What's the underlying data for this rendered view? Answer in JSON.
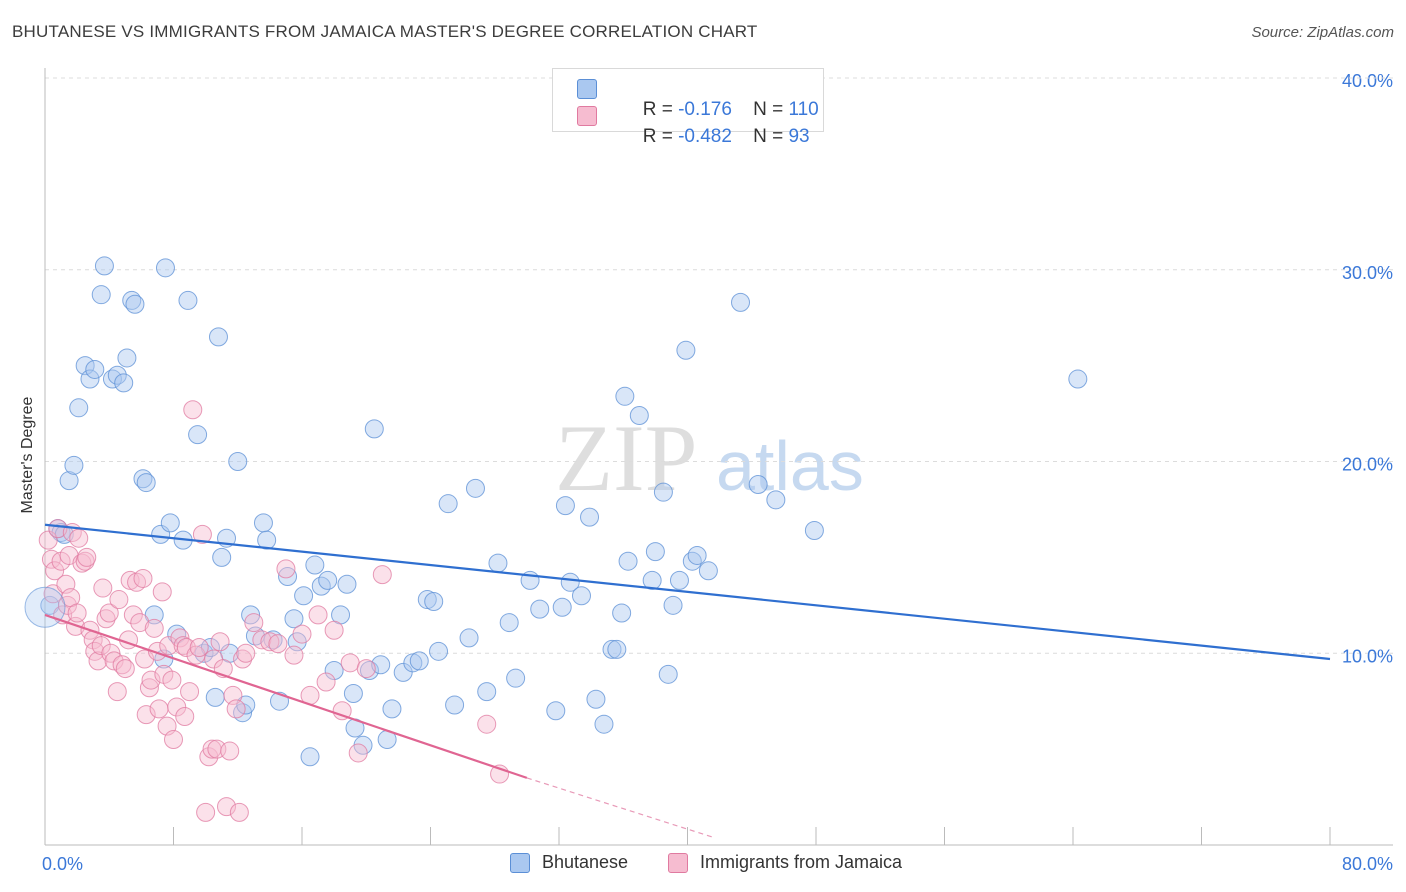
{
  "title": "BHUTANESE VS IMMIGRANTS FROM JAMAICA MASTER'S DEGREE CORRELATION CHART",
  "source": "Source: ZipAtlas.com",
  "watermark": {
    "zip": "ZIP",
    "atlas": "atlas"
  },
  "legend": {
    "rows": [
      {
        "r_label": "R = ",
        "r_value": "-0.176",
        "n_label": "N = ",
        "n_value": "110",
        "color": "#aac8f0",
        "stroke": "#5b8fd6"
      },
      {
        "r_label": "R = ",
        "r_value": "-0.482",
        "n_label": "N = ",
        "n_value": "93",
        "color": "#f6bcd0",
        "stroke": "#e07aa0"
      }
    ]
  },
  "bottom_legend": [
    {
      "label": "Bhutanese",
      "color": "#aac8f0",
      "stroke": "#5b8fd6"
    },
    {
      "label": "Immigrants from Jamaica",
      "color": "#f6bcd0",
      "stroke": "#e07aa0"
    }
  ],
  "chart_data": {
    "type": "scatter",
    "title": "BHUTANESE VS IMMIGRANTS FROM JAMAICA MASTER'S DEGREE CORRELATION CHART",
    "xlabel": "",
    "ylabel": "Master's Degree",
    "xlim": [
      0,
      80
    ],
    "ylim": [
      0,
      40
    ],
    "x_tick_labels": [
      "0.0%",
      "80.0%"
    ],
    "y_ticks": [
      10,
      20,
      30,
      40
    ],
    "y_tick_labels": [
      "10.0%",
      "20.0%",
      "30.0%",
      "40.0%"
    ],
    "grid": true,
    "series": [
      {
        "name": "Bhutanese",
        "color": "#5b8fd6",
        "fill": "#aac8f0",
        "trend": {
          "x0": 0,
          "y0": 16.7,
          "x1": 80,
          "y1": 9.7
        },
        "points": [
          [
            0.3,
            12.5
          ],
          [
            0.8,
            16.5
          ],
          [
            1.0,
            16.3
          ],
          [
            1.2,
            16.2
          ],
          [
            1.5,
            19.0
          ],
          [
            1.8,
            19.8
          ],
          [
            2.1,
            22.8
          ],
          [
            2.5,
            25.0
          ],
          [
            2.8,
            24.3
          ],
          [
            3.1,
            24.8
          ],
          [
            3.5,
            28.7
          ],
          [
            3.7,
            30.2
          ],
          [
            4.2,
            24.3
          ],
          [
            4.5,
            24.5
          ],
          [
            4.9,
            24.1
          ],
          [
            5.1,
            25.4
          ],
          [
            5.4,
            28.4
          ],
          [
            5.6,
            28.2
          ],
          [
            6.1,
            19.1
          ],
          [
            6.3,
            18.9
          ],
          [
            6.8,
            12.0
          ],
          [
            7.2,
            16.2
          ],
          [
            7.4,
            9.7
          ],
          [
            7.5,
            30.1
          ],
          [
            7.8,
            16.8
          ],
          [
            8.2,
            11.0
          ],
          [
            8.6,
            15.9
          ],
          [
            8.9,
            28.4
          ],
          [
            9.5,
            21.4
          ],
          [
            9.9,
            10.0
          ],
          [
            10.3,
            10.3
          ],
          [
            10.6,
            7.7
          ],
          [
            10.8,
            26.5
          ],
          [
            11.0,
            15.0
          ],
          [
            11.3,
            16.0
          ],
          [
            11.5,
            10.0
          ],
          [
            12.0,
            20.0
          ],
          [
            12.3,
            6.9
          ],
          [
            12.5,
            7.3
          ],
          [
            12.8,
            12.0
          ],
          [
            13.1,
            10.9
          ],
          [
            13.6,
            16.8
          ],
          [
            13.8,
            15.9
          ],
          [
            14.2,
            10.7
          ],
          [
            14.6,
            7.5
          ],
          [
            15.1,
            14.0
          ],
          [
            15.5,
            11.8
          ],
          [
            15.7,
            10.6
          ],
          [
            16.1,
            13.0
          ],
          [
            16.5,
            4.6
          ],
          [
            16.8,
            14.6
          ],
          [
            17.2,
            13.5
          ],
          [
            17.6,
            13.8
          ],
          [
            18.0,
            9.1
          ],
          [
            18.4,
            12.0
          ],
          [
            18.8,
            13.6
          ],
          [
            19.2,
            7.9
          ],
          [
            19.3,
            6.1
          ],
          [
            19.8,
            5.2
          ],
          [
            20.2,
            9.1
          ],
          [
            20.5,
            21.7
          ],
          [
            20.9,
            9.4
          ],
          [
            21.3,
            5.5
          ],
          [
            21.6,
            7.1
          ],
          [
            22.3,
            9.0
          ],
          [
            22.9,
            9.5
          ],
          [
            23.3,
            9.6
          ],
          [
            23.8,
            12.8
          ],
          [
            24.2,
            12.7
          ],
          [
            24.5,
            10.1
          ],
          [
            25.1,
            17.8
          ],
          [
            25.5,
            7.3
          ],
          [
            26.4,
            10.8
          ],
          [
            26.8,
            18.6
          ],
          [
            27.5,
            8.0
          ],
          [
            28.2,
            14.7
          ],
          [
            28.9,
            11.6
          ],
          [
            29.3,
            8.7
          ],
          [
            30.2,
            13.8
          ],
          [
            30.8,
            12.3
          ],
          [
            31.8,
            7.0
          ],
          [
            32.2,
            12.4
          ],
          [
            32.4,
            17.7
          ],
          [
            32.7,
            13.7
          ],
          [
            33.4,
            13.0
          ],
          [
            33.9,
            17.1
          ],
          [
            34.3,
            7.6
          ],
          [
            34.8,
            6.3
          ],
          [
            35.3,
            10.2
          ],
          [
            35.6,
            10.2
          ],
          [
            35.9,
            12.1
          ],
          [
            36.1,
            23.4
          ],
          [
            36.3,
            14.8
          ],
          [
            37.0,
            22.4
          ],
          [
            37.8,
            13.8
          ],
          [
            38.0,
            15.3
          ],
          [
            38.5,
            18.4
          ],
          [
            38.8,
            8.9
          ],
          [
            39.1,
            12.5
          ],
          [
            39.5,
            13.8
          ],
          [
            39.9,
            25.8
          ],
          [
            40.3,
            14.8
          ],
          [
            40.6,
            15.1
          ],
          [
            41.3,
            14.3
          ],
          [
            43.3,
            28.3
          ],
          [
            44.4,
            18.8
          ],
          [
            45.5,
            18.0
          ],
          [
            47.9,
            16.4
          ],
          [
            64.3,
            24.3
          ]
        ]
      },
      {
        "name": "Immigrants from Jamaica",
        "color": "#e07aa0",
        "fill": "#f6bcd0",
        "trend": {
          "x0": 0,
          "y0": 12.0,
          "x1": 30,
          "y1": 3.5,
          "dash_to_x": 41.6,
          "dash_to_y": 0.4
        },
        "points": [
          [
            0.2,
            15.9
          ],
          [
            0.4,
            14.9
          ],
          [
            0.5,
            13.1
          ],
          [
            0.6,
            14.3
          ],
          [
            0.8,
            16.5
          ],
          [
            1.0,
            14.8
          ],
          [
            1.1,
            12.0
          ],
          [
            1.3,
            13.6
          ],
          [
            1.4,
            12.5
          ],
          [
            1.5,
            15.1
          ],
          [
            1.6,
            12.9
          ],
          [
            1.7,
            16.3
          ],
          [
            1.9,
            11.4
          ],
          [
            2.0,
            12.1
          ],
          [
            2.1,
            16.0
          ],
          [
            2.3,
            14.7
          ],
          [
            2.5,
            14.8
          ],
          [
            2.6,
            15.0
          ],
          [
            2.8,
            11.2
          ],
          [
            3.0,
            10.7
          ],
          [
            3.1,
            10.1
          ],
          [
            3.3,
            9.6
          ],
          [
            3.5,
            10.4
          ],
          [
            3.6,
            13.4
          ],
          [
            3.8,
            11.8
          ],
          [
            4.0,
            12.1
          ],
          [
            4.1,
            10.0
          ],
          [
            4.3,
            9.6
          ],
          [
            4.5,
            8.0
          ],
          [
            4.6,
            12.8
          ],
          [
            4.8,
            9.4
          ],
          [
            5.0,
            9.2
          ],
          [
            5.2,
            10.7
          ],
          [
            5.3,
            13.8
          ],
          [
            5.5,
            12.0
          ],
          [
            5.7,
            13.7
          ],
          [
            5.9,
            11.6
          ],
          [
            6.1,
            13.9
          ],
          [
            6.2,
            9.7
          ],
          [
            6.3,
            6.8
          ],
          [
            6.5,
            8.2
          ],
          [
            6.6,
            8.6
          ],
          [
            6.8,
            11.3
          ],
          [
            7.0,
            10.1
          ],
          [
            7.1,
            7.1
          ],
          [
            7.3,
            13.2
          ],
          [
            7.4,
            8.9
          ],
          [
            7.6,
            6.2
          ],
          [
            7.7,
            10.4
          ],
          [
            7.9,
            8.6
          ],
          [
            8.0,
            5.5
          ],
          [
            8.2,
            7.2
          ],
          [
            8.4,
            10.8
          ],
          [
            8.6,
            10.4
          ],
          [
            8.7,
            6.7
          ],
          [
            8.8,
            10.3
          ],
          [
            9.0,
            8.0
          ],
          [
            9.2,
            22.7
          ],
          [
            9.4,
            9.9
          ],
          [
            9.6,
            10.3
          ],
          [
            9.8,
            16.2
          ],
          [
            10.0,
            1.7
          ],
          [
            10.2,
            4.6
          ],
          [
            10.4,
            5.0
          ],
          [
            10.5,
            9.7
          ],
          [
            10.7,
            5.0
          ],
          [
            10.9,
            10.6
          ],
          [
            11.1,
            9.2
          ],
          [
            11.3,
            2.0
          ],
          [
            11.5,
            4.9
          ],
          [
            11.7,
            7.8
          ],
          [
            11.9,
            7.1
          ],
          [
            12.1,
            1.7
          ],
          [
            12.3,
            9.7
          ],
          [
            12.5,
            10.0
          ],
          [
            13.0,
            11.6
          ],
          [
            13.5,
            10.7
          ],
          [
            14.0,
            10.6
          ],
          [
            14.5,
            10.5
          ],
          [
            15.0,
            14.4
          ],
          [
            15.5,
            9.9
          ],
          [
            16.0,
            11.0
          ],
          [
            16.5,
            7.8
          ],
          [
            17.0,
            12.0
          ],
          [
            17.5,
            8.5
          ],
          [
            18.0,
            11.2
          ],
          [
            18.5,
            7.0
          ],
          [
            19.0,
            9.5
          ],
          [
            19.5,
            4.8
          ],
          [
            20.0,
            9.2
          ],
          [
            21.0,
            14.1
          ],
          [
            27.5,
            6.3
          ],
          [
            28.3,
            3.7
          ]
        ]
      }
    ]
  }
}
